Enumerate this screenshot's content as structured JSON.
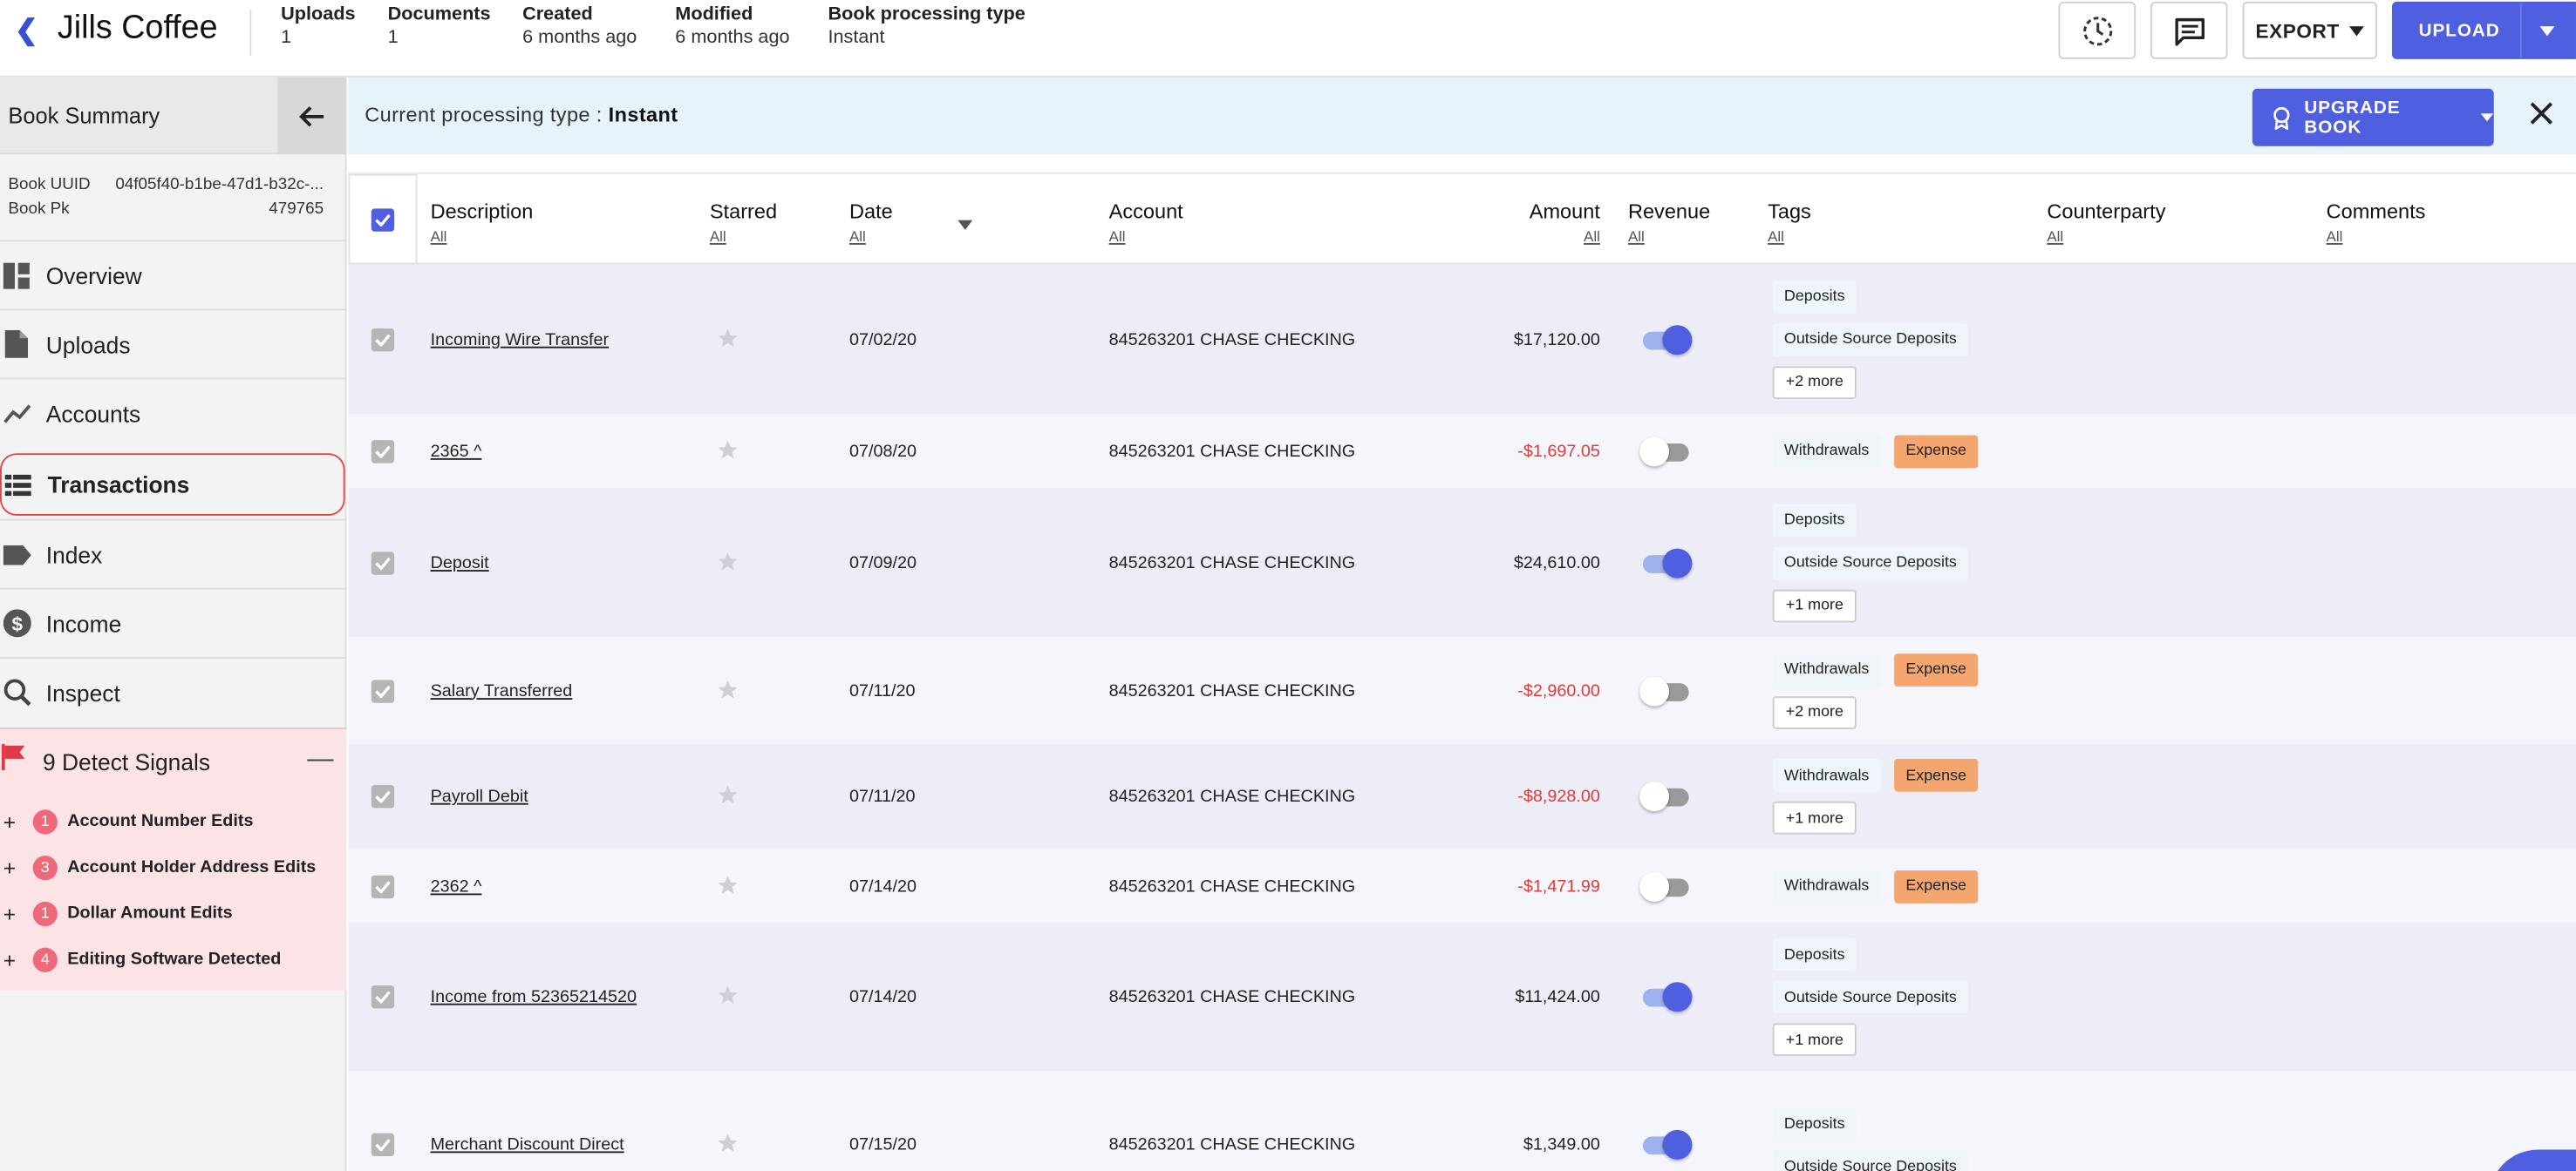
{
  "header": {
    "title": "Jills Coffee",
    "meta": [
      {
        "key": "Uploads",
        "value": "1"
      },
      {
        "key": "Documents",
        "value": "1"
      },
      {
        "key": "Created",
        "value": "6 months ago"
      },
      {
        "key": "Modified",
        "value": "6 months ago"
      },
      {
        "key": "Book processing type",
        "value": "Instant"
      }
    ],
    "export_label": "EXPORT",
    "upload_label": "UPLOAD"
  },
  "sidebar": {
    "title": "Book Summary",
    "uuid_label": "Book UUID",
    "uuid_value": "04f05f40-b1be-47d1-b32c-...",
    "pk_label": "Book Pk",
    "pk_value": "479765",
    "items": [
      {
        "label": "Overview",
        "icon": "dashboard-icon"
      },
      {
        "label": "Uploads",
        "icon": "file-icon"
      },
      {
        "label": "Accounts",
        "icon": "trend-icon"
      },
      {
        "label": "Transactions",
        "icon": "list-icon"
      },
      {
        "label": "Index",
        "icon": "label-icon"
      },
      {
        "label": "Income",
        "icon": "dollar-icon"
      },
      {
        "label": "Inspect",
        "icon": "search-icon"
      }
    ],
    "signals": {
      "title": "9 Detect Signals",
      "items": [
        {
          "count": "1",
          "label": "Account Number Edits"
        },
        {
          "count": "3",
          "label": "Account Holder Address Edits"
        },
        {
          "count": "1",
          "label": "Dollar Amount Edits"
        },
        {
          "count": "4",
          "label": "Editing Software Detected"
        }
      ]
    }
  },
  "banner": {
    "prefix": "Current processing type : ",
    "value": "Instant",
    "upgrade_label": "UPGRADE BOOK"
  },
  "table": {
    "columns": [
      {
        "label": "Description",
        "filter": "All"
      },
      {
        "label": "Starred",
        "filter": "All"
      },
      {
        "label": "Date",
        "filter": "All"
      },
      {
        "label": "Account",
        "filter": "All"
      },
      {
        "label": "Amount",
        "filter": "All"
      },
      {
        "label": "Revenue",
        "filter": "All"
      },
      {
        "label": "Tags",
        "filter": "All"
      },
      {
        "label": "Counterparty",
        "filter": "All"
      },
      {
        "label": "Comments",
        "filter": "All"
      }
    ],
    "rows": [
      {
        "description": "Incoming Wire Transfer",
        "date": "07/02/20",
        "account": "845263201 CHASE CHECKING",
        "amount": "$17,120.00",
        "revenue": true,
        "tags": [
          "Deposits",
          "Outside Source Deposits"
        ],
        "expense": false,
        "more": "+2 more"
      },
      {
        "description": "2365 ^",
        "date": "07/08/20",
        "account": "845263201 CHASE CHECKING",
        "amount": "-$1,697.05",
        "revenue": false,
        "tags": [
          "Withdrawals"
        ],
        "expense": true,
        "more": ""
      },
      {
        "description": "Deposit",
        "date": "07/09/20",
        "account": "845263201 CHASE CHECKING",
        "amount": "$24,610.00",
        "revenue": true,
        "tags": [
          "Deposits",
          "Outside Source Deposits"
        ],
        "expense": false,
        "more": "+1 more"
      },
      {
        "description": "Salary Transferred",
        "date": "07/11/20",
        "account": "845263201 CHASE CHECKING",
        "amount": "-$2,960.00",
        "revenue": false,
        "tags": [
          "Withdrawals"
        ],
        "expense": true,
        "more": "+2 more"
      },
      {
        "description": "Payroll Debit",
        "date": "07/11/20",
        "account": "845263201 CHASE CHECKING",
        "amount": "-$8,928.00",
        "revenue": false,
        "tags": [
          "Withdrawals"
        ],
        "expense": true,
        "more": "+1 more"
      },
      {
        "description": "2362 ^",
        "date": "07/14/20",
        "account": "845263201 CHASE CHECKING",
        "amount": "-$1,471.99",
        "revenue": false,
        "tags": [
          "Withdrawals"
        ],
        "expense": true,
        "more": ""
      },
      {
        "description": "Income from 52365214520",
        "date": "07/14/20",
        "account": "845263201 CHASE CHECKING",
        "amount": "$11,424.00",
        "revenue": true,
        "tags": [
          "Deposits",
          "Outside Source Deposits"
        ],
        "expense": false,
        "more": "+1 more"
      },
      {
        "description": "Merchant Discount Direct",
        "date": "07/15/20",
        "account": "845263201 CHASE CHECKING",
        "amount": "$1,349.00",
        "revenue": true,
        "tags": [
          "Deposits",
          "Outside Source Deposits"
        ],
        "expense": false,
        "more": ""
      }
    ],
    "expense_label": "Expense"
  },
  "colors": {
    "accent": "#4f5fe0",
    "negative": "#e03a3a",
    "expense_tag": "#f4a66e",
    "signal_badge": "#ee6a7a",
    "signals_bg": "#fbe3e6",
    "banner_bg": "#e6f3fb"
  }
}
